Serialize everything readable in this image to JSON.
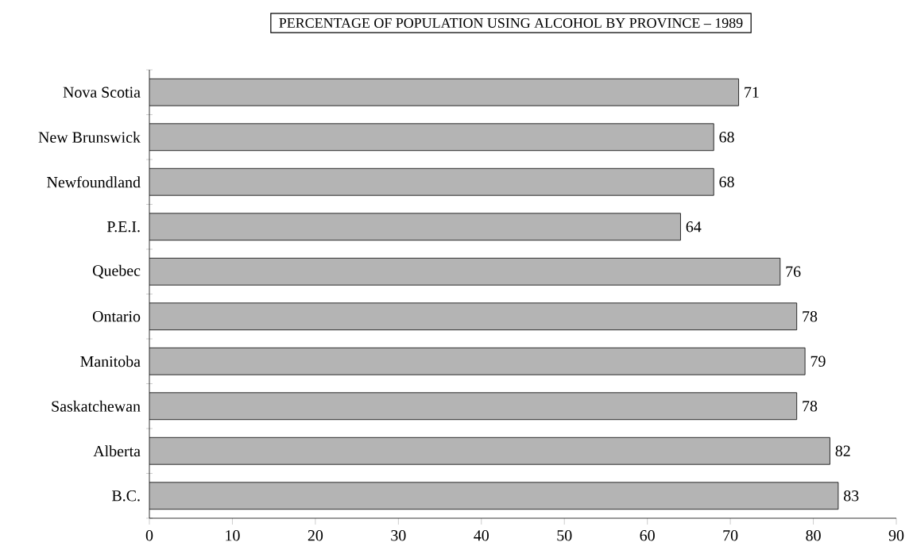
{
  "chart_data": {
    "type": "bar",
    "orientation": "horizontal",
    "title": "PERCENTAGE OF POPULATION USING ALCOHOL BY PROVINCE – 1989",
    "categories": [
      "Nova Scotia",
      "New Brunswick",
      "Newfoundland",
      "P.E.I.",
      "Quebec",
      "Ontario",
      "Manitoba",
      "Saskatchewan",
      "Alberta",
      "B.C."
    ],
    "values": [
      71,
      68,
      68,
      64,
      76,
      78,
      79,
      78,
      82,
      83
    ],
    "color": "#b4b4b4",
    "xlim": [
      0,
      90
    ],
    "xticks": [
      0,
      10,
      20,
      30,
      40,
      50,
      60,
      70,
      80,
      90
    ],
    "data_labels": true,
    "grid": false
  }
}
